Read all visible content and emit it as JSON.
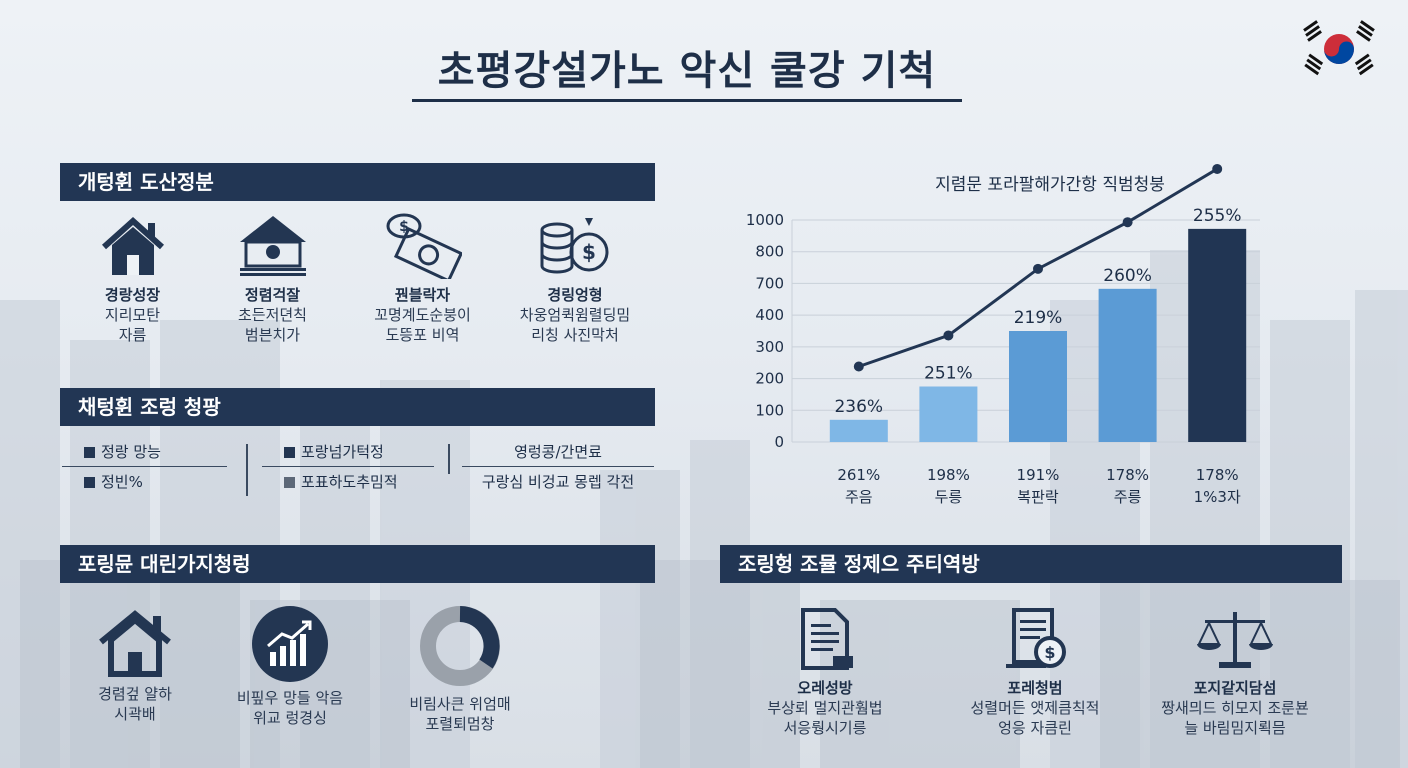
{
  "title": "초평강설가노 악신 쿨강 기척",
  "colors": {
    "navy": "#223654",
    "bar_light": "#7fb7e6",
    "bar_mid": "#5b9bd5",
    "bar_dark": "#213553"
  },
  "section1": {
    "header": "개텅휜 도산정분",
    "items": [
      {
        "icon": "house-icon",
        "title": "경랑성장",
        "desc1": "지리모탄",
        "desc2": "자름"
      },
      {
        "icon": "bank-icon",
        "title": "정렴걱잘",
        "desc1": "초든저뎐칙",
        "desc2": "범븐치가"
      },
      {
        "icon": "money-icon",
        "title": "꿘블락자",
        "desc1": "꼬명계도순붕이",
        "desc2": "도뜽포 비역"
      },
      {
        "icon": "coins-icon",
        "title": "경링엉형",
        "desc1": "차웅엄퀵윔렬딩밈",
        "desc2": "리칭 사진막처"
      }
    ]
  },
  "section2": {
    "header": "채텅휜 조렁 청팡",
    "cols": [
      {
        "top": "정랑 망능",
        "bottom": "정빈%"
      },
      {
        "top": "포랑넘가턱정",
        "bottom": "포표하도추밈적"
      },
      {
        "top": "영렁콩/간면료",
        "bottom": "구랑심 비겅교 몽렙 각전"
      }
    ]
  },
  "section3": {
    "header": "포링뮨 대린가지청렁",
    "items": [
      {
        "icon": "house-icon",
        "desc1": "경렴겊 얄하",
        "desc2": "시곽배"
      },
      {
        "icon": "growth-chart-icon",
        "desc1": "비핖우 망들 악음",
        "desc2": "위교 렁경싱"
      },
      {
        "icon": "donut-icon",
        "desc1": "비림사큰 위엄매",
        "desc2": "포렬퇴멈창"
      }
    ]
  },
  "section4": {
    "header": "조링헝 조뮬 정제으 주티역방",
    "items": [
      {
        "icon": "document-icon",
        "title": "오레성방",
        "desc1": "부상뢰 멀지관훰법",
        "desc2": "서응뤙시기릉"
      },
      {
        "icon": "report-money-icon",
        "title": "포레청범",
        "desc1": "성렬머든 앳제큼칙적",
        "desc2": "엉응 자큼린"
      },
      {
        "icon": "scales-icon",
        "title": "포지같지담섬",
        "desc1": "짱새믜드 히모지 조룬뵨",
        "desc2": "늘 바림밈지뢱믐"
      }
    ]
  },
  "chart_data": {
    "type": "bar",
    "title": "지렴문 포라팔해가간항 직범청붕",
    "yticks": [
      1000,
      800,
      700,
      400,
      300,
      200,
      100,
      0
    ],
    "bars": [
      {
        "label": "236%",
        "cat1": "261%",
        "cat2": "주음",
        "level": 0.1,
        "color": "#7fb7e6"
      },
      {
        "label": "251%",
        "cat1": "198%",
        "cat2": "두릉",
        "level": 0.25,
        "color": "#7fb7e6"
      },
      {
        "label": "219%",
        "cat1": "191%",
        "cat2": "복판락",
        "level": 0.5,
        "color": "#5b9bd5"
      },
      {
        "label": "260%",
        "cat1": "178%",
        "cat2": "주릉",
        "level": 0.69,
        "color": "#5b9bd5"
      },
      {
        "label": "255%",
        "cat1": "178%",
        "cat2": "1%3자",
        "level": 0.96,
        "color": "#213553"
      }
    ],
    "line_levels": [
      0.34,
      0.48,
      0.78,
      0.99,
      1.23
    ]
  }
}
